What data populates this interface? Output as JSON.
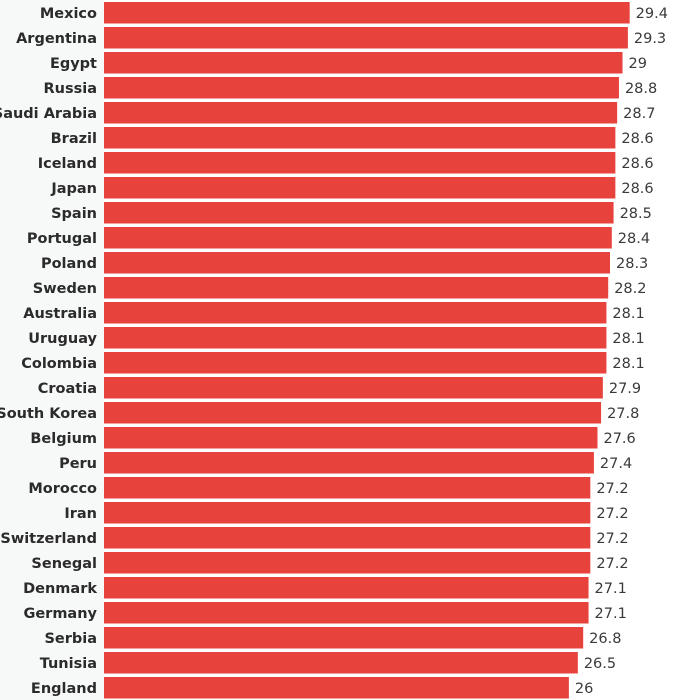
{
  "chart_data": {
    "type": "bar",
    "orientation": "horizontal",
    "title": "",
    "xlabel": "",
    "ylabel": "",
    "xlim": [
      0,
      29.4
    ],
    "grid": false,
    "bar_color": "#e8423c",
    "categories": [
      "Mexico",
      "Argentina",
      "Egypt",
      "Russia",
      "Saudi Arabia",
      "Brazil",
      "Iceland",
      "Japan",
      "Spain",
      "Portugal",
      "Poland",
      "Sweden",
      "Australia",
      "Uruguay",
      "Colombia",
      "Croatia",
      "South Korea",
      "Belgium",
      "Peru",
      "Morocco",
      "Iran",
      "Switzerland",
      "Senegal",
      "Denmark",
      "Germany",
      "Serbia",
      "Tunisia",
      "England"
    ],
    "values": [
      29.4,
      29.3,
      29,
      28.8,
      28.7,
      28.6,
      28.6,
      28.6,
      28.5,
      28.4,
      28.3,
      28.2,
      28.1,
      28.1,
      28.1,
      27.9,
      27.8,
      27.6,
      27.4,
      27.2,
      27.2,
      27.2,
      27.2,
      27.1,
      27.1,
      26.8,
      26.5,
      26
    ],
    "value_labels": [
      "29.4",
      "29.3",
      "29",
      "28.8",
      "28.7",
      "28.6",
      "28.6",
      "28.6",
      "28.5",
      "28.4",
      "28.3",
      "28.2",
      "28.1",
      "28.1",
      "28.1",
      "27.9",
      "27.8",
      "27.6",
      "27.4",
      "27.2",
      "27.2",
      "27.2",
      "27.2",
      "27.1",
      "27.1",
      "26.8",
      "26.5",
      "26"
    ]
  }
}
